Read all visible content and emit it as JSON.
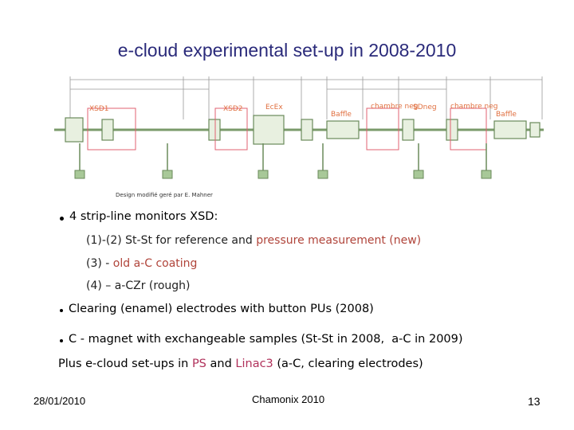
{
  "title": "e-cloud experimental set-up in 2008-2010",
  "diagram": {
    "labels": [
      "XSD1",
      "XSD2",
      "EcEx",
      "Baffle",
      "chambre neg",
      "SDneg",
      "chambre neg",
      "Baffle"
    ],
    "credit": "Design modifié geré par E. Mahner"
  },
  "list": {
    "main": "4 strip-line monitors XSD:",
    "sub": [
      [
        "(1)-(2) St-St for reference and ",
        "pressure measurement (new)"
      ],
      [
        "(3) - ",
        "old a-C coating"
      ],
      [
        "(4) – a-CZr (rough)"
      ]
    ],
    "bullets": [
      "Clearing (enamel) electrodes with button PUs (2008)",
      "C - magnet with exchangeable samples (St-St in 2008,  a-C in 2009)"
    ],
    "plus": [
      "Plus e-cloud set-ups in ",
      "PS",
      " and ",
      "Linac3",
      " (a-C, clearing electrodes)"
    ]
  },
  "footer": {
    "date": "28/01/2010",
    "event": "Chamonix 2010",
    "page": "13"
  }
}
